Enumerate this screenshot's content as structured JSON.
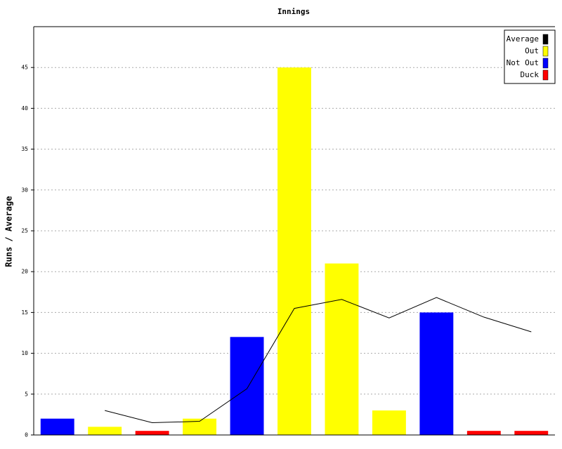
{
  "chart_data": {
    "type": "bar",
    "title": "Innings",
    "y_label": "Runs / Average",
    "categories": [
      null,
      null,
      null,
      null,
      null,
      null,
      null,
      null,
      null,
      null,
      null
    ],
    "series": [
      {
        "name": "Average",
        "type": "line",
        "color": "#000000",
        "values": [
          null,
          3,
          1.5,
          1.67,
          5.67,
          15.5,
          16.6,
          14.33,
          16.83,
          14.43,
          12.63
        ]
      },
      {
        "name": "Out",
        "type": "bar",
        "color": "#ffff00",
        "values": [
          null,
          1,
          null,
          2,
          null,
          45,
          21,
          3,
          null,
          null,
          null
        ]
      },
      {
        "name": "Not Out",
        "type": "bar",
        "color": "#0000ff",
        "values": [
          2,
          null,
          null,
          null,
          12,
          null,
          null,
          null,
          15,
          null,
          null
        ]
      },
      {
        "name": "Duck",
        "type": "bar",
        "color": "#ff0000",
        "values": [
          null,
          null,
          0.5,
          null,
          null,
          null,
          null,
          null,
          null,
          0.5,
          0.5
        ]
      }
    ],
    "ylim": [
      0,
      50
    ],
    "yticks": [
      0,
      5,
      10,
      15,
      20,
      25,
      30,
      35,
      40,
      45
    ],
    "grid": true,
    "legend": "top-right"
  }
}
